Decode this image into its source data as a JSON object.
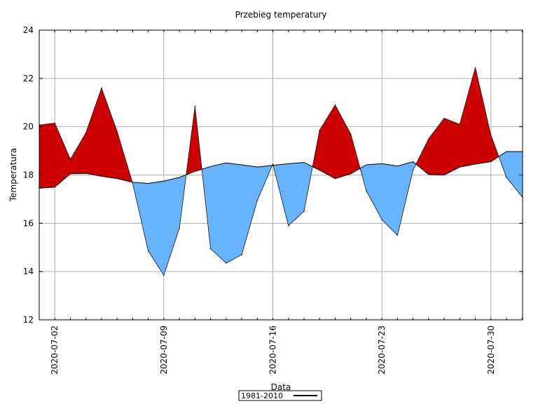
{
  "chart_data": {
    "type": "area",
    "title": "Przebieg temperatury",
    "xlabel": "Data",
    "ylabel": "Temperatura",
    "ylim": [
      12,
      24
    ],
    "xlim": [
      "2020-07-01",
      "2020-07-31"
    ],
    "x_axis": "date",
    "yticks": [
      12,
      14,
      16,
      18,
      20,
      22,
      24
    ],
    "xticks": [
      "2020-07-02",
      "2020-07-09",
      "2020-07-16",
      "2020-07-23",
      "2020-07-30"
    ],
    "grid": true,
    "legend_position": "bottom-center",
    "series": [
      {
        "name": "1981-2010",
        "role": "normal",
        "color": "#000000",
        "points": [
          [
            "2020-07-01",
            17.45
          ],
          [
            "2020-07-02",
            17.5
          ],
          [
            "2020-07-03",
            18.05
          ],
          [
            "2020-07-04",
            18.07
          ],
          [
            "2020-07-05",
            17.95
          ],
          [
            "2020-07-06",
            17.85
          ],
          [
            "2020-07-07",
            17.7
          ],
          [
            "2020-07-08",
            17.65
          ],
          [
            "2020-07-09",
            17.75
          ],
          [
            "2020-07-10",
            17.9
          ],
          [
            "2020-07-11",
            18.15
          ],
          [
            "2020-07-12",
            18.35
          ],
          [
            "2020-07-13",
            18.5
          ],
          [
            "2020-07-14",
            18.42
          ],
          [
            "2020-07-15",
            18.33
          ],
          [
            "2020-07-16",
            18.4
          ],
          [
            "2020-07-17",
            18.47
          ],
          [
            "2020-07-18",
            18.52
          ],
          [
            "2020-07-19",
            18.2
          ],
          [
            "2020-07-20",
            17.85
          ],
          [
            "2020-07-21",
            18.05
          ],
          [
            "2020-07-22",
            18.42
          ],
          [
            "2020-07-23",
            18.47
          ],
          [
            "2020-07-24",
            18.37
          ],
          [
            "2020-07-25",
            18.55
          ],
          [
            "2020-07-26",
            18.02
          ],
          [
            "2020-07-27",
            18.0
          ],
          [
            "2020-07-28",
            18.33
          ],
          [
            "2020-07-29",
            18.45
          ],
          [
            "2020-07-30",
            18.55
          ],
          [
            "2020-07-31",
            18.97
          ],
          [
            "2020-08-01",
            18.97
          ]
        ]
      },
      {
        "name": "",
        "role": "observed",
        "points": [
          [
            "2020-07-01",
            20.07
          ],
          [
            "2020-07-02",
            20.15
          ],
          [
            "2020-07-03",
            18.65
          ],
          [
            "2020-07-04",
            19.75
          ],
          [
            "2020-07-05",
            21.6
          ],
          [
            "2020-07-06",
            19.8
          ],
          [
            "2020-07-07",
            17.65
          ],
          [
            "2020-07-08",
            14.85
          ],
          [
            "2020-07-09",
            13.85
          ],
          [
            "2020-07-10",
            15.8
          ],
          [
            "2020-07-11",
            20.85
          ],
          [
            "2020-07-12",
            14.95
          ],
          [
            "2020-07-13",
            14.35
          ],
          [
            "2020-07-14",
            14.7
          ],
          [
            "2020-07-15",
            16.95
          ],
          [
            "2020-07-16",
            18.45
          ],
          [
            "2020-07-17",
            15.9
          ],
          [
            "2020-07-18",
            16.5
          ],
          [
            "2020-07-19",
            19.85
          ],
          [
            "2020-07-20",
            20.9
          ],
          [
            "2020-07-21",
            19.7
          ],
          [
            "2020-07-22",
            17.35
          ],
          [
            "2020-07-23",
            16.15
          ],
          [
            "2020-07-24",
            15.5
          ],
          [
            "2020-07-25",
            18.2
          ],
          [
            "2020-07-26",
            19.5
          ],
          [
            "2020-07-27",
            20.35
          ],
          [
            "2020-07-28",
            20.1
          ],
          [
            "2020-07-29",
            22.45
          ],
          [
            "2020-07-30",
            19.65
          ],
          [
            "2020-07-31",
            17.9
          ],
          [
            "2020-08-01",
            17.1
          ]
        ]
      }
    ],
    "colors": {
      "above_normal": "#cc0000",
      "below_normal": "#66b3ff",
      "line": "#000000",
      "grid": "#b0b0b0"
    }
  }
}
